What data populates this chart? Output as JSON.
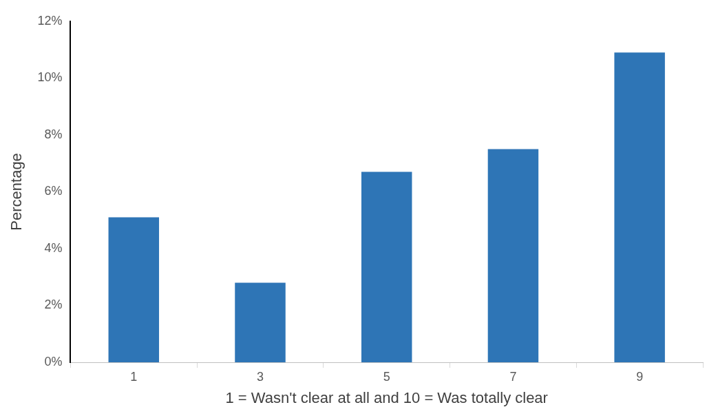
{
  "chart_data": {
    "type": "bar",
    "xlabel": "1 = Wasn't clear at all and 10 = Was totally clear",
    "ylabel": "Percentage",
    "categories": [
      "1",
      "3",
      "5",
      "7",
      "9"
    ],
    "values": [
      5.1,
      2.8,
      6.7,
      7.5,
      10.9
    ],
    "color": "#2e75b6",
    "ylim": [
      0,
      12
    ],
    "yticks": [
      {
        "value": 0,
        "label": "0%"
      },
      {
        "value": 2,
        "label": "2%"
      },
      {
        "value": 4,
        "label": "4%"
      },
      {
        "value": 6,
        "label": "6%"
      },
      {
        "value": 8,
        "label": "8%"
      },
      {
        "value": 10,
        "label": "10%"
      },
      {
        "value": 12,
        "label": "12%"
      }
    ],
    "grid": false,
    "legend": false
  }
}
